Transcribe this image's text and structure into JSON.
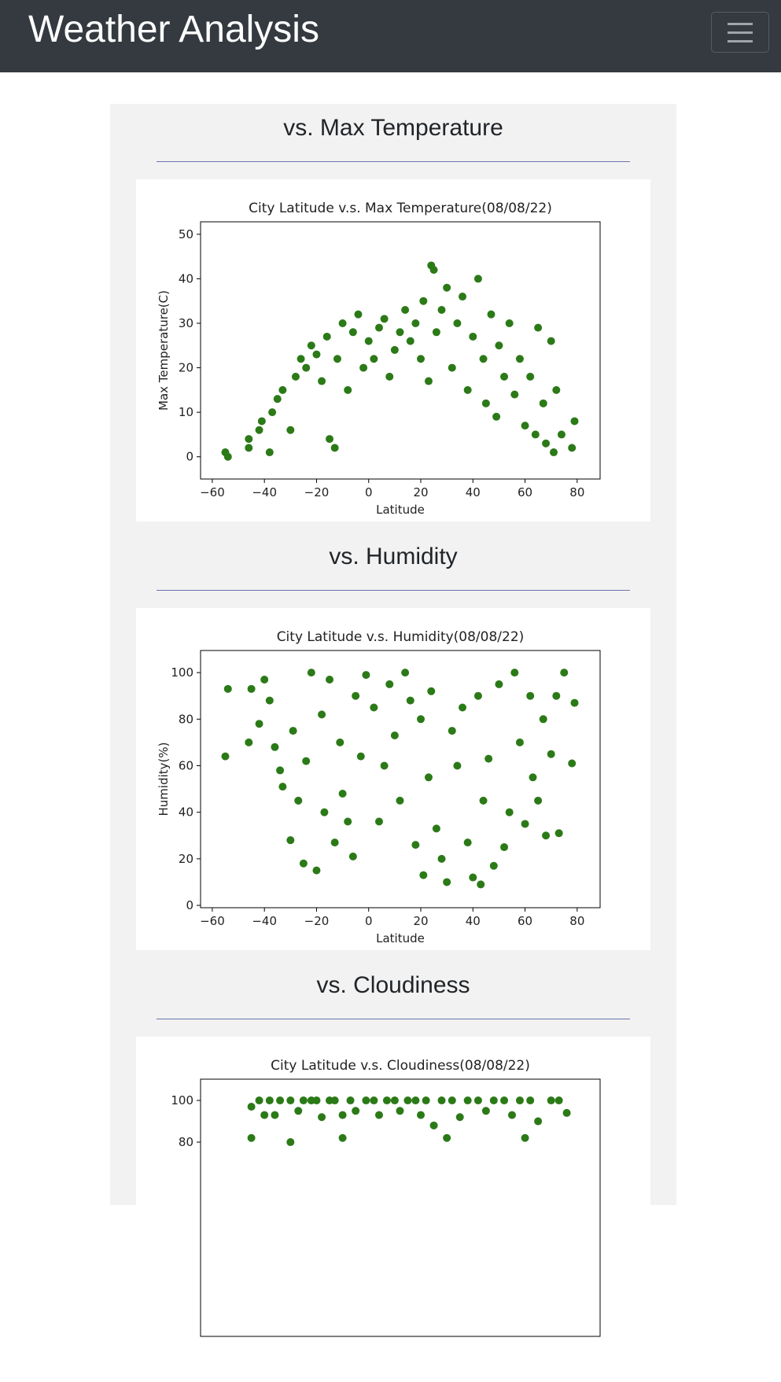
{
  "header": {
    "title": "Weather Analysis"
  },
  "sections": [
    {
      "heading": "vs. Max Temperature",
      "chart": {
        "type": "scatter",
        "title": "City Latitude v.s. Max Temperature(08/08/22)",
        "xlabel": "Latitude",
        "ylabel": "Max Temperature(C)",
        "color": "#2b7a17",
        "xlim": [
          -64.5,
          88.8
        ],
        "ylim": [
          -5,
          52.8
        ],
        "xticks": [
          {
            "value": -60,
            "label": "−60"
          },
          {
            "value": -40,
            "label": "−40"
          },
          {
            "value": -20,
            "label": "−20"
          },
          0,
          20,
          40,
          60,
          80
        ],
        "yticks": [
          0,
          10,
          20,
          30,
          40,
          50
        ],
        "series": [
          {
            "name": "Cities",
            "x": [
              -55,
              -54,
              -46,
              -46,
              -42,
              -41,
              -38,
              -37,
              -35,
              -33,
              -30,
              -28,
              -26,
              -24,
              -22,
              -20,
              -18,
              -16,
              -15,
              -13,
              -12,
              -10,
              -8,
              -6,
              -4,
              -2,
              0,
              2,
              4,
              6,
              8,
              10,
              12,
              14,
              16,
              18,
              20,
              21,
              23,
              24,
              25,
              26,
              28,
              30,
              32,
              34,
              36,
              38,
              40,
              42,
              44,
              45,
              47,
              49,
              50,
              52,
              54,
              56,
              58,
              60,
              62,
              64,
              65,
              67,
              68,
              70,
              71,
              72,
              74,
              78,
              79
            ],
            "values": [
              1,
              0,
              2,
              4,
              6,
              8,
              1,
              10,
              13,
              15,
              6,
              18,
              22,
              20,
              25,
              23,
              17,
              27,
              4,
              2,
              22,
              30,
              15,
              28,
              32,
              20,
              26,
              22,
              29,
              31,
              18,
              24,
              28,
              33,
              26,
              30,
              22,
              35,
              17,
              43,
              42,
              28,
              33,
              38,
              20,
              30,
              36,
              15,
              27,
              40,
              22,
              12,
              32,
              9,
              25,
              18,
              30,
              14,
              22,
              7,
              18,
              5,
              29,
              12,
              3,
              26,
              1,
              15,
              5,
              2,
              8
            ]
          }
        ]
      }
    },
    {
      "heading": "vs. Humidity",
      "chart": {
        "type": "scatter",
        "title": "City Latitude v.s. Humidity(08/08/22)",
        "xlabel": "Latitude",
        "ylabel": "Humidity(%)",
        "color": "#2b7a17",
        "xlim": [
          -64.5,
          88.8
        ],
        "ylim": [
          -1,
          109.5
        ],
        "xticks": [
          {
            "value": -60,
            "label": "−60"
          },
          {
            "value": -40,
            "label": "−40"
          },
          {
            "value": -20,
            "label": "−20"
          },
          0,
          20,
          40,
          60,
          80
        ],
        "yticks": [
          0,
          20,
          40,
          60,
          80,
          100
        ],
        "series": [
          {
            "name": "Cities",
            "x": [
              -55,
              -54,
              -46,
              -45,
              -42,
              -40,
              -38,
              -36,
              -34,
              -33,
              -30,
              -29,
              -27,
              -25,
              -24,
              -22,
              -20,
              -18,
              -17,
              -15,
              -13,
              -11,
              -10,
              -8,
              -6,
              -5,
              -3,
              -1,
              2,
              4,
              6,
              8,
              10,
              12,
              14,
              16,
              18,
              20,
              21,
              23,
              24,
              26,
              28,
              30,
              32,
              34,
              36,
              38,
              40,
              42,
              43,
              44,
              46,
              48,
              50,
              52,
              54,
              56,
              58,
              60,
              62,
              63,
              65,
              67,
              68,
              70,
              72,
              73,
              75,
              78,
              79
            ],
            "values": [
              64,
              93,
              70,
              93,
              78,
              97,
              88,
              68,
              58,
              51,
              28,
              75,
              45,
              18,
              62,
              100,
              15,
              82,
              40,
              97,
              27,
              70,
              48,
              36,
              21,
              90,
              64,
              99,
              85,
              36,
              60,
              95,
              73,
              45,
              100,
              88,
              26,
              80,
              13,
              55,
              92,
              33,
              20,
              10,
              75,
              60,
              85,
              27,
              12,
              90,
              9,
              45,
              63,
              17,
              95,
              25,
              40,
              100,
              70,
              35,
              90,
              55,
              45,
              80,
              30,
              65,
              90,
              31,
              100,
              61,
              87
            ]
          }
        ]
      }
    },
    {
      "heading": "vs. Cloudiness",
      "chart": {
        "type": "scatter",
        "title": "City Latitude v.s. Cloudiness(08/08/22)",
        "color": "#2b7a17",
        "xlim": [
          -64.5,
          88.8
        ],
        "ylim": [
          -13.2,
          110.2
        ],
        "yticks": [
          80,
          100
        ],
        "series": [
          {
            "name": "Cities",
            "x": [
              -45,
              -42,
              -40,
              -38,
              -36,
              -34,
              -30,
              -27,
              -25,
              -22,
              -20,
              -18,
              -15,
              -13,
              -10,
              -7,
              -5,
              -1,
              2,
              4,
              7,
              10,
              12,
              15,
              18,
              20,
              22,
              25,
              28,
              32,
              35,
              38,
              42,
              45,
              48,
              52,
              55,
              58,
              62,
              65,
              70,
              73,
              76,
              -45,
              -30,
              -10,
              30,
              60
            ],
            "values": [
              97,
              100,
              93,
              100,
              93,
              100,
              100,
              95,
              100,
              100,
              100,
              92,
              100,
              100,
              93,
              100,
              95,
              100,
              100,
              93,
              100,
              100,
              95,
              100,
              100,
              93,
              100,
              88,
              100,
              100,
              92,
              100,
              100,
              95,
              100,
              100,
              93,
              100,
              100,
              90,
              100,
              100,
              94,
              82,
              80,
              82,
              82,
              82
            ]
          }
        ]
      }
    }
  ]
}
